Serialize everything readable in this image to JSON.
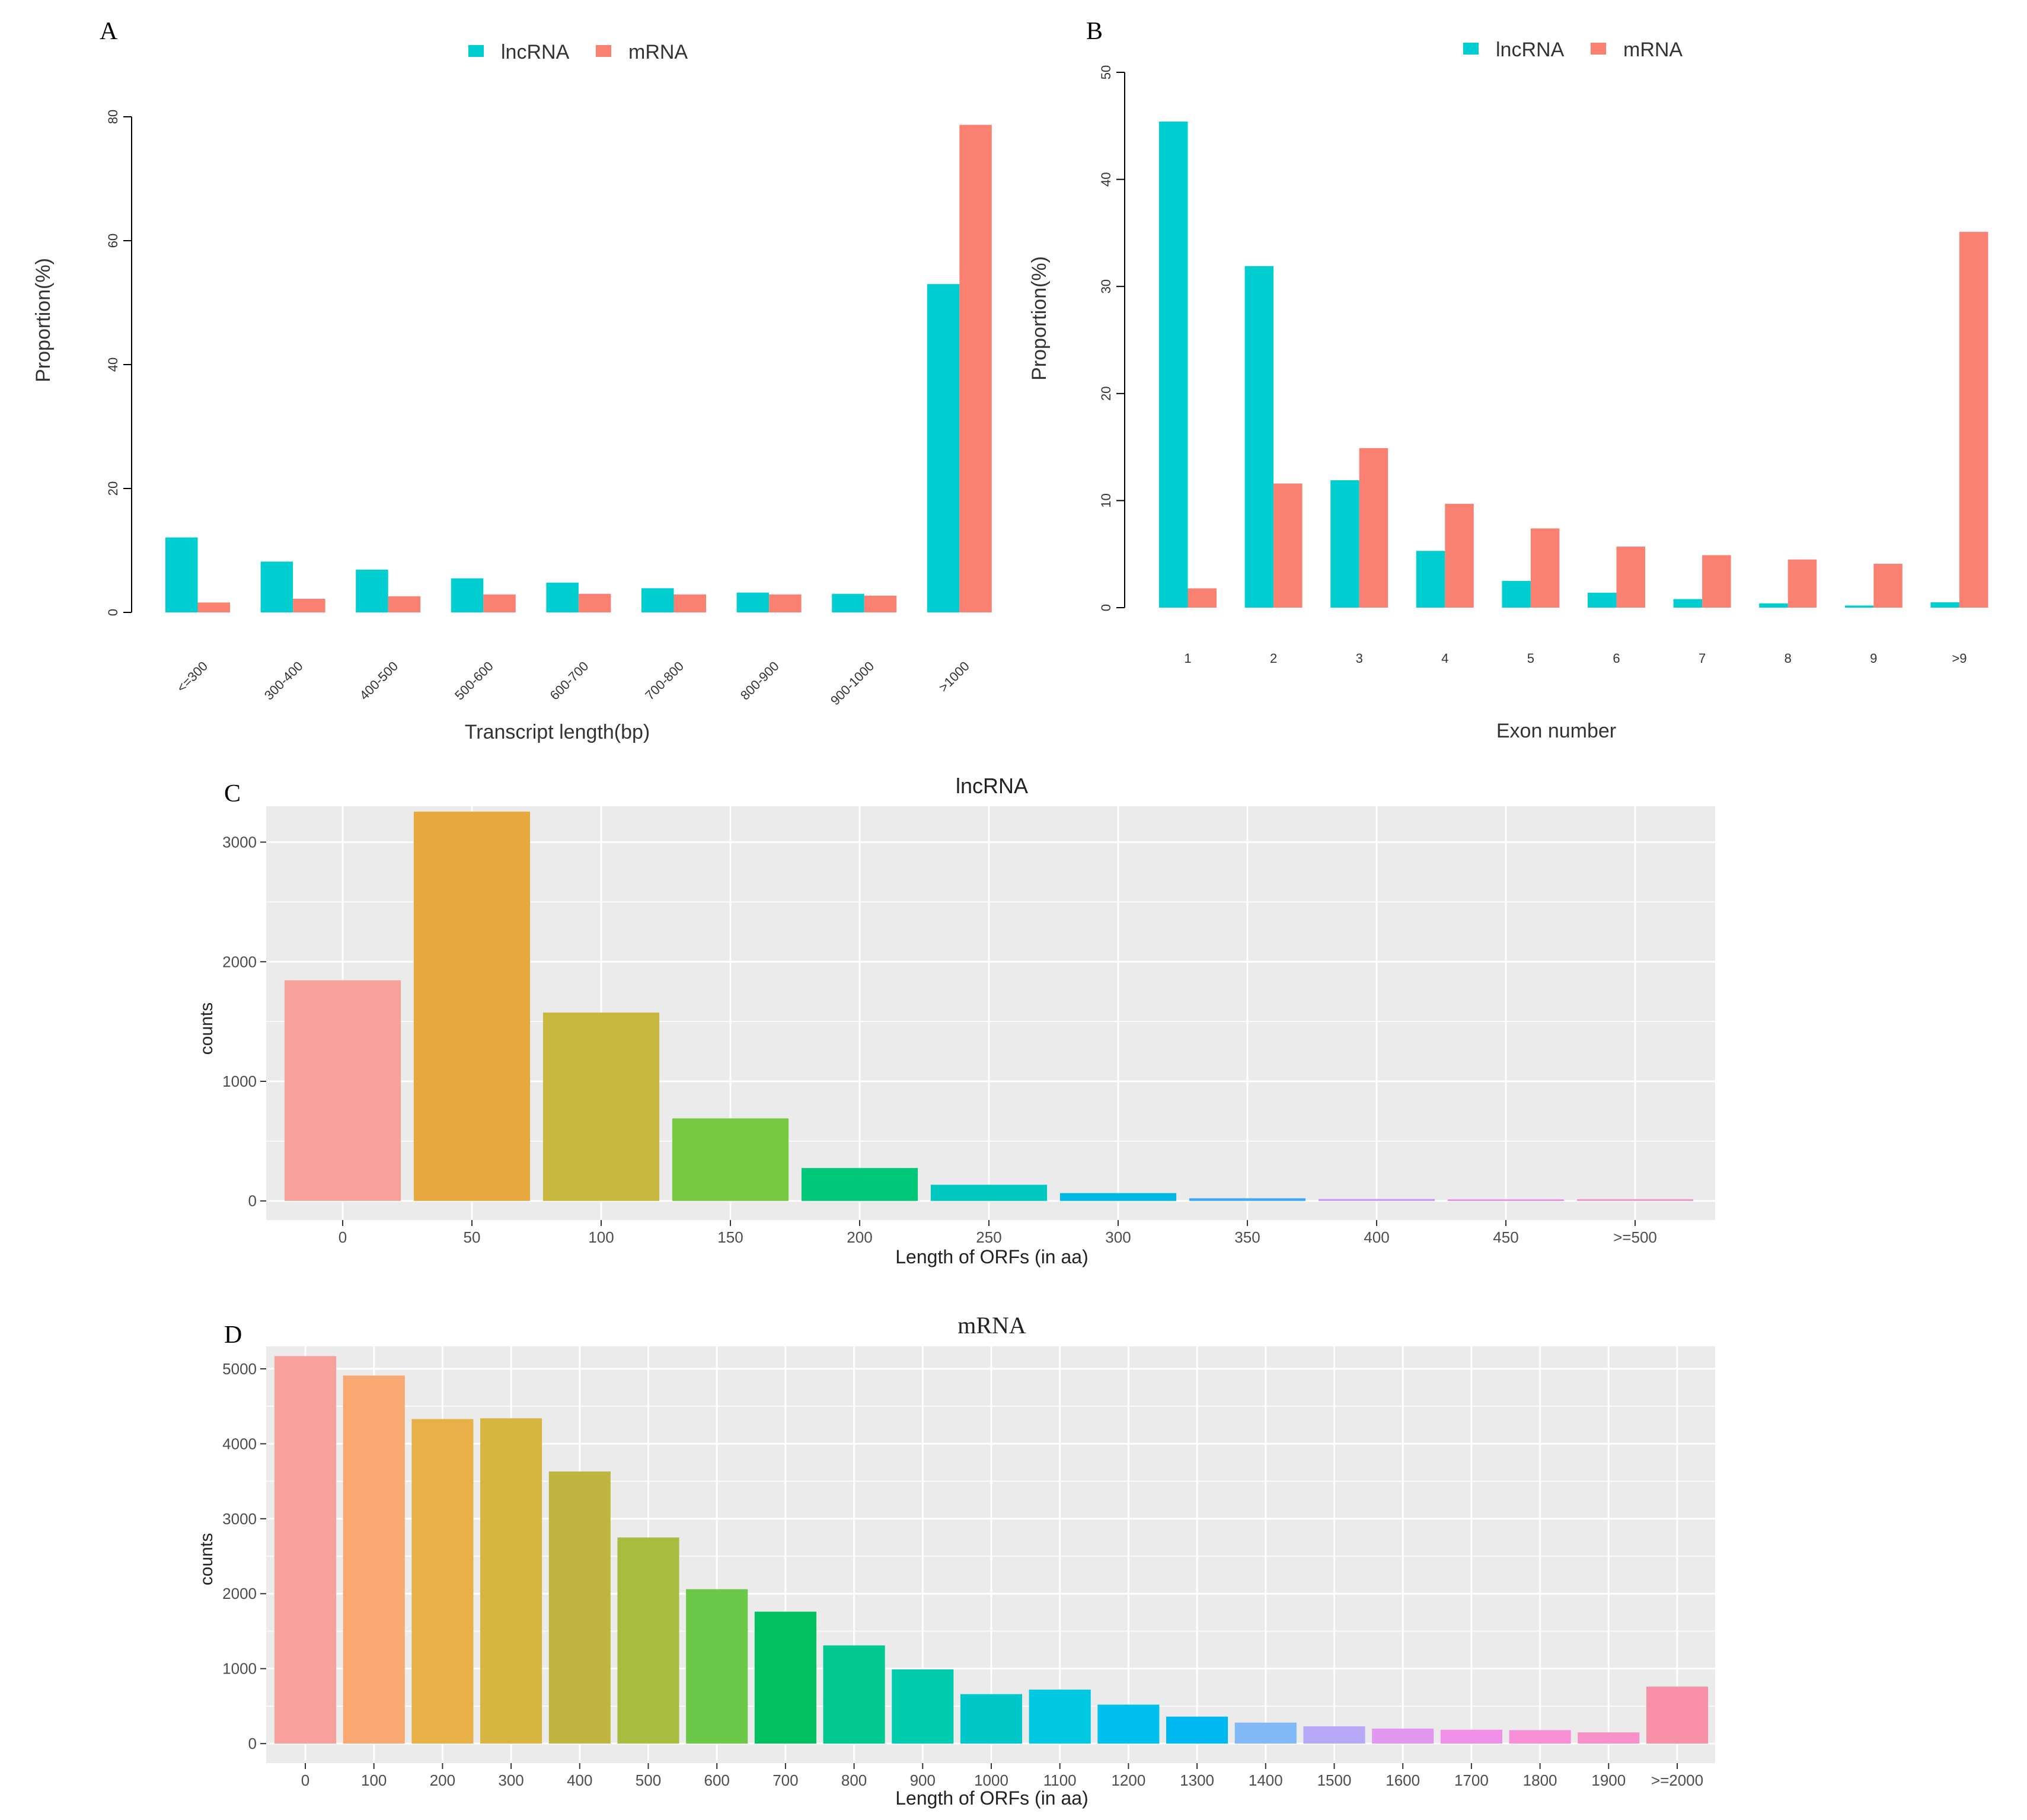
{
  "colors": {
    "lnc": "#00CED1",
    "mrna": "#FA8072",
    "panel_bg": "#EBEBEB",
    "grid": "#FFFFFF",
    "axis": "#000000",
    "tick_text": "#4D4D4D"
  },
  "chart_data": [
    {
      "id": "A",
      "type": "bar",
      "panel_label": "A",
      "categories": [
        "<=300",
        "300-400",
        "400-500",
        "500-600",
        "600-700",
        "700-800",
        "800-900",
        "900-1000",
        ">1000"
      ],
      "series": [
        {
          "name": "lncRNA",
          "values": [
            12.1,
            8.2,
            6.9,
            5.5,
            4.8,
            3.9,
            3.2,
            3.0,
            53.0
          ]
        },
        {
          "name": "mRNA",
          "values": [
            1.6,
            2.2,
            2.6,
            2.9,
            3.0,
            2.9,
            2.9,
            2.7,
            78.7
          ]
        }
      ],
      "legend": [
        "lncRNA",
        "mRNA"
      ],
      "legend_position": "top",
      "xlabel": "Transcript length(bp)",
      "ylabel": "Proportion(%)",
      "ylim": [
        0,
        80
      ],
      "yticks": [
        0,
        20,
        40,
        60,
        80
      ]
    },
    {
      "id": "B",
      "type": "bar",
      "panel_label": "B",
      "categories": [
        "1",
        "2",
        "3",
        "4",
        "5",
        "6",
        "7",
        "8",
        "9",
        ">9"
      ],
      "series": [
        {
          "name": "lncRNA",
          "values": [
            45.4,
            31.9,
            11.9,
            5.3,
            2.5,
            1.4,
            0.8,
            0.4,
            0.2,
            0.5
          ]
        },
        {
          "name": "mRNA",
          "values": [
            1.8,
            11.6,
            14.9,
            9.7,
            7.4,
            5.7,
            4.9,
            4.5,
            4.1,
            35.1
          ]
        }
      ],
      "legend": [
        "lncRNA",
        "mRNA"
      ],
      "legend_position": "top",
      "xlabel": "Exon number",
      "ylabel": "Proportion(%)",
      "ylim": [
        0,
        50
      ],
      "yticks": [
        0,
        10,
        20,
        30,
        40,
        50
      ]
    },
    {
      "id": "C",
      "type": "bar",
      "panel_label": "C",
      "title": "lncRNA",
      "categories": [
        "0",
        "50",
        "100",
        "150",
        "200",
        "250",
        "300",
        "350",
        "400",
        "450",
        ">=500"
      ],
      "values": [
        1845,
        3255,
        1575,
        690,
        275,
        135,
        65,
        22,
        16,
        12,
        14
      ],
      "bar_colors": [
        "#F8A09A",
        "#E8A840",
        "#C8B840",
        "#78C840",
        "#00C878",
        "#00C8C0",
        "#00B8E0",
        "#40A8F8",
        "#C898F8",
        "#F080E8",
        "#F890C8"
      ],
      "xlabel": "Length of ORFs (in aa)",
      "ylabel": "counts",
      "ylim": [
        0,
        3300
      ],
      "yticks": [
        0,
        1000,
        2000,
        3000
      ]
    },
    {
      "id": "D",
      "type": "bar",
      "panel_label": "D",
      "title": "mRNA",
      "categories": [
        "0",
        "100",
        "200",
        "300",
        "400",
        "500",
        "600",
        "700",
        "800",
        "900",
        "1000",
        "1100",
        "1200",
        "1300",
        "1400",
        "1500",
        "1600",
        "1700",
        "1800",
        "1900",
        ">=2000"
      ],
      "values": [
        5170,
        4910,
        4330,
        4340,
        3630,
        2750,
        2060,
        1760,
        1310,
        990,
        660,
        720,
        520,
        360,
        280,
        230,
        200,
        185,
        180,
        150,
        760
      ],
      "bar_colors": [
        "#F8A09A",
        "#F8A870",
        "#E8B048",
        "#D8B440",
        "#C0B440",
        "#A8BC40",
        "#6CC848",
        "#00C060",
        "#00C890",
        "#00CCB0",
        "#00C8C8",
        "#00C8E0",
        "#00C0F0",
        "#00B8F0",
        "#80B8F8",
        "#B8A8F8",
        "#E098F0",
        "#F090E8",
        "#F890D8",
        "#F890C8",
        "#F890A8"
      ],
      "xlabel": "Length of ORFs (in aa)",
      "ylabel": "counts",
      "ylim": [
        0,
        5300
      ],
      "yticks": [
        0,
        1000,
        2000,
        3000,
        4000,
        5000
      ]
    }
  ]
}
